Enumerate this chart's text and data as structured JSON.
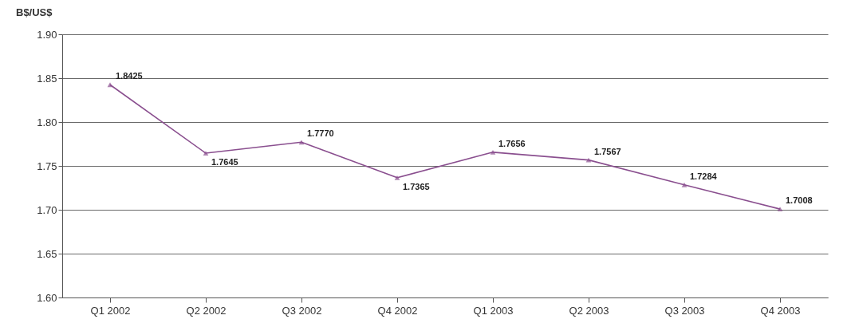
{
  "chart_data": {
    "type": "line",
    "ylabel": "B$/US$",
    "categories": [
      "Q1 2002",
      "Q2 2002",
      "Q3 2002",
      "Q4 2002",
      "Q1 2003",
      "Q2 2003",
      "Q3 2003",
      "Q4 2003"
    ],
    "series": [
      {
        "color": "#8a4f8f",
        "values": [
          1.8425,
          1.7645,
          1.777,
          1.7365,
          1.7656,
          1.7567,
          1.7284,
          1.7008
        ],
        "value_labels": [
          "1.8425",
          "1.7645",
          "1.7770",
          "1.7365",
          "1.7656",
          "1.7567",
          "1.7284",
          "1.7008"
        ]
      }
    ],
    "ylim": [
      1.6,
      1.9
    ],
    "yticks": [
      {
        "value": 1.6,
        "label": "1.60"
      },
      {
        "value": 1.65,
        "label": "1.65"
      },
      {
        "value": 1.7,
        "label": "1.70"
      },
      {
        "value": 1.75,
        "label": "1.75"
      },
      {
        "value": 1.8,
        "label": "1.80"
      },
      {
        "value": 1.85,
        "label": "1.85"
      },
      {
        "value": 1.9,
        "label": "1.90"
      }
    ],
    "grid": "y",
    "marker": "triangle",
    "line_style": "solid"
  }
}
